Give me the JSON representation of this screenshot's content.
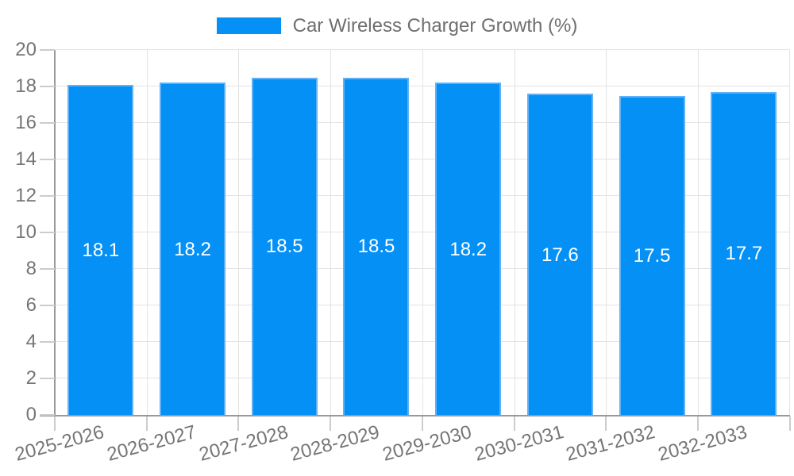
{
  "legend": {
    "label": "Car Wireless Charger Growth (%)"
  },
  "chart_data": {
    "type": "bar",
    "title": "Car Wireless Charger Growth (%)",
    "categories": [
      "2025-2026",
      "2026-2027",
      "2027-2028",
      "2028-2029",
      "2029-2030",
      "2030-2031",
      "2031-2032",
      "2032-2033"
    ],
    "values": [
      18.1,
      18.2,
      18.5,
      18.5,
      18.2,
      17.6,
      17.5,
      17.7
    ],
    "bar_labels": [
      "18.1",
      "18.2",
      "18.5",
      "18.5",
      "18.2",
      "17.6",
      "17.5",
      "17.7"
    ],
    "series": [
      {
        "name": "Car Wireless Charger Growth (%)",
        "values": [
          18.1,
          18.2,
          18.5,
          18.5,
          18.2,
          17.6,
          17.5,
          17.7
        ]
      }
    ],
    "xlabel": "",
    "ylabel": "",
    "ylim": [
      0,
      20
    ],
    "yticks": [
      "0",
      "2",
      "4",
      "6",
      "8",
      "10",
      "12",
      "14",
      "16",
      "18",
      "20"
    ],
    "grid": true,
    "legend_position": "top",
    "colors": {
      "bar_fill": "#0590f6",
      "bar_border": "#5eb2f8",
      "data_label": "#ffffff",
      "axis_line": "#999999",
      "grid_line": "#e3e3e3",
      "tick_line": "#cccccc",
      "text": "#757575"
    }
  }
}
